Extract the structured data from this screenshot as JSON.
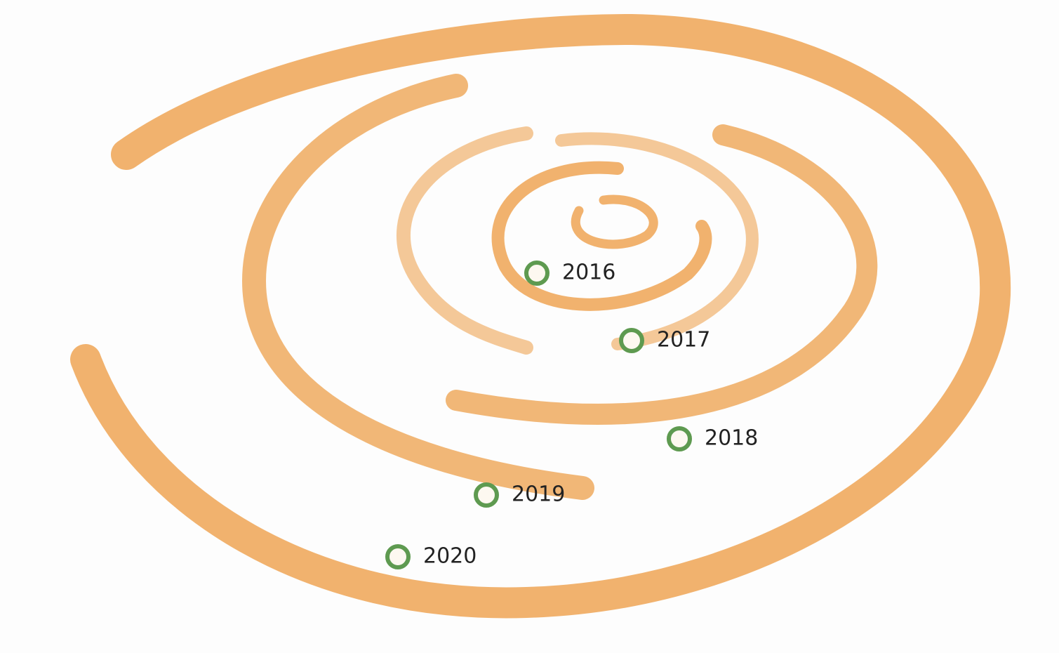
{
  "markers": [
    {
      "label": "2016"
    },
    {
      "label": "2017"
    },
    {
      "label": "2018"
    },
    {
      "label": "2019"
    },
    {
      "label": "2020"
    }
  ]
}
